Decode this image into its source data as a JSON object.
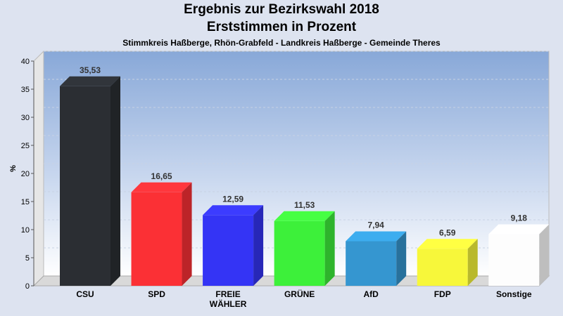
{
  "header": {
    "title_line1": "Ergebnis zur Bezirkswahl 2018",
    "title_line2": "Erststimmen in Prozent",
    "subtitle": "Stimmkreis Haßberge, Rhön-Grabfeld - Landkreis Haßberge - Gemeinde Theres"
  },
  "chart_data": {
    "type": "bar",
    "title": "Ergebnis zur Bezirkswahl 2018 Erststimmen in Prozent",
    "subtitle": "Stimmkreis Haßberge, Rhön-Grabfeld - Landkreis Haßberge - Gemeinde Theres",
    "xlabel": "",
    "ylabel": "%",
    "ylim": [
      0,
      40
    ],
    "yticks": [
      0,
      5,
      10,
      15,
      20,
      25,
      30,
      35,
      40
    ],
    "grid": true,
    "legend": "none",
    "categories": [
      [
        "CSU"
      ],
      [
        "SPD"
      ],
      [
        "FREIE",
        "WÄHLER"
      ],
      [
        "GRÜNE"
      ],
      [
        "AfD"
      ],
      [
        "FDP"
      ],
      [
        "Sonstige"
      ]
    ],
    "values": [
      35.53,
      16.65,
      12.59,
      11.53,
      7.94,
      6.59,
      9.18
    ],
    "value_labels": [
      "35,53",
      "16,65",
      "12,59",
      "11,53",
      "7,94",
      "6,59",
      "9,18"
    ],
    "colors": [
      "#2b2e33",
      "#fb3035",
      "#3434f5",
      "#3df03a",
      "#3596d0",
      "#f7f73a",
      "#fdfdfd"
    ]
  }
}
